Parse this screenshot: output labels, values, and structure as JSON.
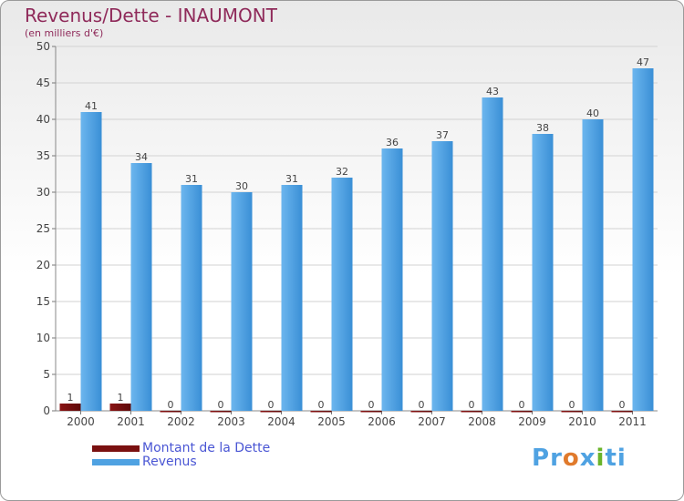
{
  "title": "Revenus/Dette - INAUMONT",
  "subtitle": "(en milliers d'€)",
  "brand": {
    "letters": [
      "P",
      "r",
      "o",
      "x",
      "i",
      "t",
      "i"
    ]
  },
  "colors": {
    "title": "#8f2a5a",
    "debt": "#7a1010",
    "revenue": "#4fa2e2",
    "legend_text": "#4a56d4",
    "logo": [
      "#4fa2e2",
      "#4fa2e2",
      "#e07a2c",
      "#4fa2e2",
      "#6ab42a",
      "#4fa2e2",
      "#4fa2e2"
    ]
  },
  "chart_data": {
    "type": "bar",
    "title": "Revenus/Dette - INAUMONT",
    "ylabel": "(en milliers d'€)",
    "xlabel": "",
    "categories": [
      "2000",
      "2001",
      "2002",
      "2003",
      "2004",
      "2005",
      "2006",
      "2007",
      "2008",
      "2009",
      "2010",
      "2011"
    ],
    "series": [
      {
        "name": "Montant de la Dette",
        "values": [
          1,
          1,
          0,
          0,
          0,
          0,
          0,
          0,
          0,
          0,
          0,
          0
        ]
      },
      {
        "name": "Revenus",
        "values": [
          41,
          34,
          31,
          30,
          31,
          32,
          36,
          37,
          43,
          38,
          40,
          47
        ]
      }
    ],
    "ylim": [
      0,
      50
    ],
    "yticks": [
      0,
      5,
      10,
      15,
      20,
      25,
      30,
      35,
      40,
      45,
      50
    ],
    "grid": true,
    "legend": "bottom-left"
  }
}
